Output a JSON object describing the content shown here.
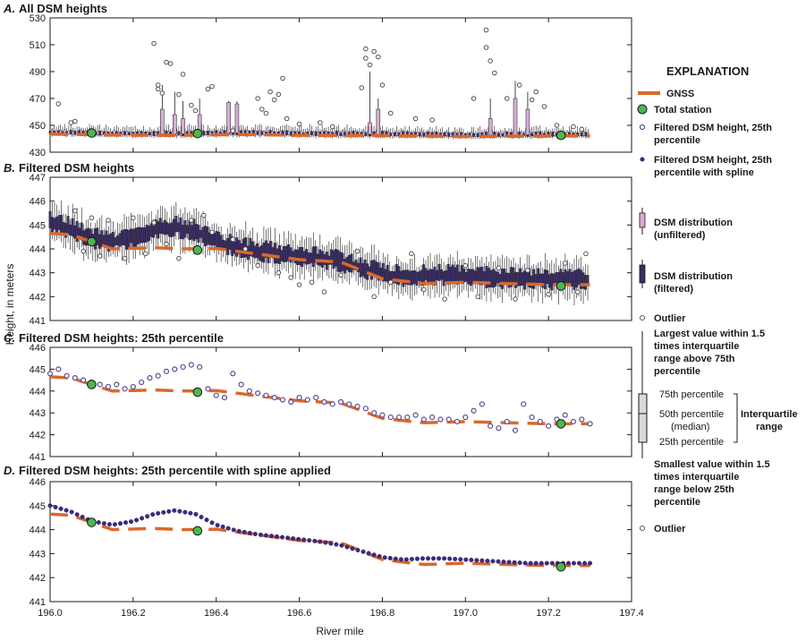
{
  "figure": {
    "ylabel": "Height, in meters",
    "xlabel": "River mile",
    "x_ticks": [
      "196.0",
      "196.2",
      "196.4",
      "196.6",
      "196.8",
      "197.0",
      "197.2",
      "197.4"
    ]
  },
  "colors": {
    "gnss": "#d9692b",
    "total_station": "#4cb84c",
    "filtered_ring": "#5c4a94",
    "spline_dot": "#3f2a78",
    "unfiltered_box": "#d7aed5",
    "filtered_box": "#3b2e63",
    "outlier": "#555555"
  },
  "explanation": {
    "title": "EXPLANATION",
    "gnss": "GNSS",
    "total_station": "Total station",
    "filtered_25_l1": "Filtered DSM height, 25th",
    "filtered_25_l2": "percentile",
    "spline_l1": "Filtered DSM height, 25th",
    "spline_l2": "percentile with spline",
    "unfiltered_l1": "DSM distribution",
    "unfiltered_l2": "(unfiltered)",
    "filtered_l1": "DSM distribution",
    "filtered_l2": "(filtered)",
    "outlier_top": "Outlier",
    "largest_l1": "Largest value within 1.5",
    "largest_l2": "times interquartile",
    "largest_l3": "range above 75th",
    "largest_l4": "percentile",
    "p75": "75th percentile",
    "p50": "50th percentile",
    "median": "(median)",
    "p25": "25th percentile",
    "iqr_l1": "Interquartile",
    "iqr_l2": "range",
    "smallest_l1": "Smallest value within 1.5",
    "smallest_l2": "times interquartile",
    "smallest_l3": "range below 25th",
    "smallest_l4": "percentile",
    "outlier_bottom": "Outlier"
  },
  "chart_data": [
    {
      "type": "box",
      "title": "All DSM heights",
      "panel_letter": "A.",
      "ylim": [
        430,
        530
      ],
      "y_ticks": [
        "430",
        "450",
        "470",
        "490",
        "510",
        "530"
      ],
      "gnss": [
        [
          196.0,
          443.5
        ],
        [
          196.15,
          442.8
        ],
        [
          196.3,
          442.5
        ],
        [
          196.45,
          443.2
        ],
        [
          196.6,
          442.6
        ],
        [
          196.8,
          442.3
        ],
        [
          197.0,
          441.6
        ],
        [
          197.3,
          442.2
        ]
      ],
      "total_station": [
        [
          196.1,
          444.3
        ],
        [
          196.355,
          443.9
        ],
        [
          197.23,
          442.5
        ]
      ],
      "tall_boxes": [
        {
          "x": 196.27,
          "q3": 462,
          "max": 480
        },
        {
          "x": 196.3,
          "q3": 458,
          "max": 475
        },
        {
          "x": 196.32,
          "q3": 455,
          "max": 468
        },
        {
          "x": 196.36,
          "q3": 458,
          "max": 470
        },
        {
          "x": 196.43,
          "q3": 467,
          "max": 468
        },
        {
          "x": 196.45,
          "q3": 466,
          "max": 468
        },
        {
          "x": 196.77,
          "q3": 452,
          "max": 490
        },
        {
          "x": 196.79,
          "q3": 462,
          "max": 470
        },
        {
          "x": 197.06,
          "q3": 455,
          "max": 470
        },
        {
          "x": 197.12,
          "q3": 470,
          "max": 483
        },
        {
          "x": 197.15,
          "q3": 462,
          "max": 475
        }
      ],
      "outliers": [
        [
          196.02,
          466
        ],
        [
          196.05,
          452
        ],
        [
          196.06,
          453
        ],
        [
          196.25,
          511
        ],
        [
          196.26,
          480
        ],
        [
          196.26,
          477
        ],
        [
          196.27,
          474
        ],
        [
          196.28,
          497
        ],
        [
          196.29,
          496
        ],
        [
          196.31,
          473
        ],
        [
          196.32,
          488
        ],
        [
          196.34,
          465
        ],
        [
          196.35,
          461
        ],
        [
          196.38,
          477
        ],
        [
          196.39,
          479
        ],
        [
          196.44,
          446
        ],
        [
          196.5,
          470
        ],
        [
          196.51,
          462
        ],
        [
          196.52,
          459
        ],
        [
          196.53,
          475
        ],
        [
          196.54,
          469
        ],
        [
          196.55,
          473
        ],
        [
          196.56,
          485
        ],
        [
          196.57,
          455
        ],
        [
          196.6,
          451
        ],
        [
          196.65,
          452
        ],
        [
          196.68,
          449
        ],
        [
          196.75,
          478
        ],
        [
          196.76,
          507
        ],
        [
          196.76,
          500
        ],
        [
          196.77,
          495
        ],
        [
          196.78,
          505
        ],
        [
          196.79,
          501
        ],
        [
          196.8,
          480
        ],
        [
          196.82,
          459
        ],
        [
          196.88,
          455
        ],
        [
          196.92,
          454
        ],
        [
          197.02,
          470
        ],
        [
          197.05,
          521
        ],
        [
          197.05,
          508
        ],
        [
          197.06,
          498
        ],
        [
          197.07,
          489
        ],
        [
          197.1,
          470
        ],
        [
          197.13,
          480
        ],
        [
          197.16,
          469
        ],
        [
          197.17,
          475
        ],
        [
          197.19,
          464
        ],
        [
          197.22,
          450
        ],
        [
          197.26,
          449
        ],
        [
          197.28,
          447
        ]
      ]
    },
    {
      "type": "box",
      "title": "Filtered DSM heights",
      "panel_letter": "B.",
      "ylim": [
        441,
        447
      ],
      "y_ticks": [
        "441",
        "442",
        "443",
        "444",
        "445",
        "446",
        "447"
      ],
      "gnss": [
        [
          196.0,
          444.65
        ],
        [
          196.05,
          444.6
        ],
        [
          196.15,
          444.0
        ],
        [
          196.25,
          444.05
        ],
        [
          196.32,
          444.0
        ],
        [
          196.4,
          444.02
        ],
        [
          196.45,
          443.9
        ],
        [
          196.6,
          443.55
        ],
        [
          196.7,
          443.45
        ],
        [
          196.8,
          442.75
        ],
        [
          196.9,
          442.55
        ],
        [
          197.0,
          442.6
        ],
        [
          197.1,
          442.55
        ],
        [
          197.2,
          442.5
        ],
        [
          197.3,
          442.5
        ]
      ],
      "total_station": [
        [
          196.1,
          444.3
        ],
        [
          196.355,
          443.95
        ],
        [
          197.23,
          442.45
        ]
      ],
      "outliers": [
        [
          196.06,
          445.6
        ],
        [
          196.08,
          443.9
        ],
        [
          196.1,
          445.3
        ],
        [
          196.12,
          443.7
        ],
        [
          196.14,
          445.2
        ],
        [
          196.18,
          443.6
        ],
        [
          196.2,
          445.3
        ],
        [
          196.23,
          443.8
        ],
        [
          196.25,
          445.1
        ],
        [
          196.28,
          444.2
        ],
        [
          196.31,
          443.6
        ],
        [
          196.34,
          445.2
        ],
        [
          196.37,
          445.4
        ],
        [
          196.39,
          444.7
        ],
        [
          196.44,
          444.4
        ],
        [
          196.47,
          444.0
        ],
        [
          196.5,
          443.3
        ],
        [
          196.55,
          443.0
        ],
        [
          196.58,
          442.8
        ],
        [
          196.6,
          442.5
        ],
        [
          196.63,
          442.6
        ],
        [
          196.66,
          442.2
        ],
        [
          196.7,
          442.9
        ],
        [
          196.74,
          443.9
        ],
        [
          196.78,
          442.0
        ],
        [
          196.82,
          442.6
        ],
        [
          196.87,
          443.8
        ],
        [
          196.9,
          442.3
        ],
        [
          196.95,
          441.9
        ],
        [
          197.0,
          443.3
        ],
        [
          197.03,
          442.0
        ],
        [
          197.08,
          443.2
        ],
        [
          197.12,
          441.9
        ],
        [
          197.15,
          443.1
        ],
        [
          197.2,
          442.1
        ],
        [
          197.24,
          443.4
        ],
        [
          197.27,
          442.2
        ],
        [
          197.29,
          443.8
        ]
      ]
    },
    {
      "type": "scatter",
      "title": "Filtered DSM heights: 25th percentile",
      "panel_letter": "C.",
      "ylim": [
        441,
        446
      ],
      "y_ticks": [
        "441",
        "442",
        "443",
        "444",
        "445",
        "446"
      ],
      "gnss": [
        [
          196.0,
          444.65
        ],
        [
          196.05,
          444.6
        ],
        [
          196.15,
          444.0
        ],
        [
          196.25,
          444.05
        ],
        [
          196.32,
          444.0
        ],
        [
          196.4,
          444.02
        ],
        [
          196.45,
          443.9
        ],
        [
          196.6,
          443.55
        ],
        [
          196.7,
          443.45
        ],
        [
          196.8,
          442.75
        ],
        [
          196.9,
          442.55
        ],
        [
          197.0,
          442.6
        ],
        [
          197.1,
          442.55
        ],
        [
          197.2,
          442.5
        ],
        [
          197.3,
          442.5
        ]
      ],
      "total_station": [
        [
          196.1,
          444.3
        ],
        [
          196.355,
          443.95
        ],
        [
          197.23,
          442.5
        ]
      ],
      "points": [
        [
          196.0,
          444.8
        ],
        [
          196.02,
          445.0
        ],
        [
          196.04,
          444.7
        ],
        [
          196.06,
          444.6
        ],
        [
          196.08,
          444.5
        ],
        [
          196.1,
          444.4
        ],
        [
          196.12,
          444.3
        ],
        [
          196.14,
          444.2
        ],
        [
          196.16,
          444.3
        ],
        [
          196.18,
          444.1
        ],
        [
          196.2,
          444.2
        ],
        [
          196.22,
          444.4
        ],
        [
          196.24,
          444.6
        ],
        [
          196.26,
          444.7
        ],
        [
          196.28,
          444.9
        ],
        [
          196.3,
          445.0
        ],
        [
          196.32,
          445.1
        ],
        [
          196.34,
          445.2
        ],
        [
          196.36,
          445.1
        ],
        [
          196.38,
          444.1
        ],
        [
          196.4,
          443.8
        ],
        [
          196.42,
          443.7
        ],
        [
          196.44,
          444.8
        ],
        [
          196.46,
          444.3
        ],
        [
          196.48,
          444.0
        ],
        [
          196.5,
          443.9
        ],
        [
          196.52,
          443.8
        ],
        [
          196.54,
          443.7
        ],
        [
          196.56,
          443.6
        ],
        [
          196.58,
          443.5
        ],
        [
          196.6,
          443.7
        ],
        [
          196.62,
          443.6
        ],
        [
          196.64,
          443.7
        ],
        [
          196.66,
          443.5
        ],
        [
          196.68,
          443.4
        ],
        [
          196.7,
          443.5
        ],
        [
          196.72,
          443.4
        ],
        [
          196.74,
          443.3
        ],
        [
          196.76,
          443.2
        ],
        [
          196.78,
          443.0
        ],
        [
          196.8,
          442.9
        ],
        [
          196.82,
          442.8
        ],
        [
          196.84,
          442.8
        ],
        [
          196.86,
          442.8
        ],
        [
          196.88,
          442.9
        ],
        [
          196.9,
          442.7
        ],
        [
          196.92,
          442.8
        ],
        [
          196.94,
          442.7
        ],
        [
          196.96,
          442.7
        ],
        [
          196.98,
          442.6
        ],
        [
          197.0,
          442.8
        ],
        [
          197.02,
          443.1
        ],
        [
          197.04,
          443.4
        ],
        [
          197.06,
          442.4
        ],
        [
          197.08,
          442.3
        ],
        [
          197.1,
          442.6
        ],
        [
          197.12,
          442.2
        ],
        [
          197.14,
          443.4
        ],
        [
          197.16,
          442.8
        ],
        [
          197.18,
          442.6
        ],
        [
          197.2,
          442.4
        ],
        [
          197.22,
          442.7
        ],
        [
          197.24,
          442.9
        ],
        [
          197.26,
          442.6
        ],
        [
          197.28,
          442.7
        ],
        [
          197.3,
          442.5
        ]
      ]
    },
    {
      "type": "scatter",
      "title": "Filtered DSM heights: 25th percentile with spline applied",
      "panel_letter": "D.",
      "ylim": [
        441,
        446
      ],
      "y_ticks": [
        "441",
        "442",
        "443",
        "444",
        "445",
        "446"
      ],
      "gnss": [
        [
          196.0,
          444.65
        ],
        [
          196.05,
          444.6
        ],
        [
          196.15,
          444.0
        ],
        [
          196.25,
          444.05
        ],
        [
          196.32,
          444.0
        ],
        [
          196.4,
          444.02
        ],
        [
          196.45,
          443.9
        ],
        [
          196.6,
          443.55
        ],
        [
          196.7,
          443.45
        ],
        [
          196.8,
          442.75
        ],
        [
          196.9,
          442.55
        ],
        [
          197.0,
          442.6
        ],
        [
          197.1,
          442.55
        ],
        [
          197.2,
          442.5
        ],
        [
          197.3,
          442.5
        ]
      ],
      "total_station": [
        [
          196.1,
          444.3
        ],
        [
          196.355,
          443.95
        ],
        [
          197.23,
          442.45
        ]
      ],
      "spline_knots": [
        [
          196.0,
          445.0
        ],
        [
          196.05,
          444.75
        ],
        [
          196.1,
          444.35
        ],
        [
          196.15,
          444.2
        ],
        [
          196.2,
          444.35
        ],
        [
          196.25,
          444.65
        ],
        [
          196.3,
          444.8
        ],
        [
          196.35,
          444.65
        ],
        [
          196.4,
          444.2
        ],
        [
          196.45,
          443.95
        ],
        [
          196.5,
          443.8
        ],
        [
          196.55,
          443.7
        ],
        [
          196.6,
          443.6
        ],
        [
          196.65,
          443.5
        ],
        [
          196.7,
          443.35
        ],
        [
          196.75,
          443.1
        ],
        [
          196.8,
          442.85
        ],
        [
          196.85,
          442.75
        ],
        [
          196.9,
          442.8
        ],
        [
          196.95,
          442.8
        ],
        [
          197.0,
          442.75
        ],
        [
          197.05,
          442.7
        ],
        [
          197.1,
          442.65
        ],
        [
          197.15,
          442.6
        ],
        [
          197.2,
          442.6
        ],
        [
          197.25,
          442.6
        ],
        [
          197.3,
          442.6
        ]
      ]
    }
  ]
}
